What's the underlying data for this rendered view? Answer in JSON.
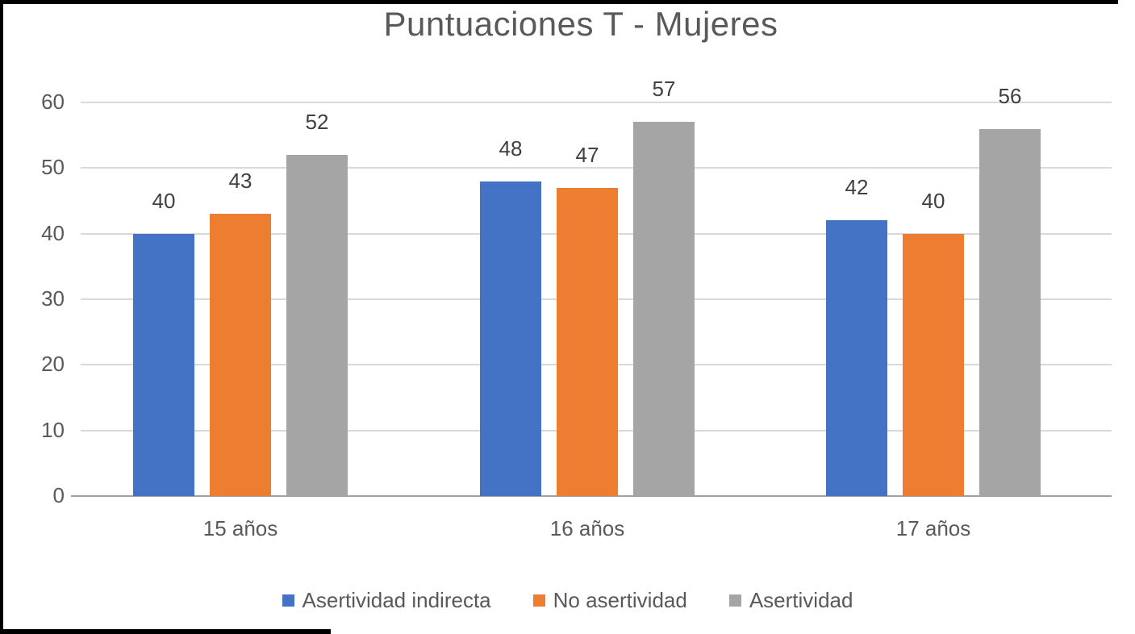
{
  "chart_data": {
    "type": "bar",
    "title": "Puntuaciones T - Mujeres",
    "categories": [
      "15 años",
      "16 años",
      "17 años"
    ],
    "series": [
      {
        "name": "Asertividad indirecta",
        "color": "#4472C4",
        "values": [
          40,
          48,
          42
        ]
      },
      {
        "name": "No asertividad",
        "color": "#ED7D31",
        "values": [
          43,
          47,
          40
        ]
      },
      {
        "name": "Asertividad",
        "color": "#A5A5A5",
        "values": [
          52,
          57,
          56
        ]
      }
    ],
    "xlabel": "",
    "ylabel": "",
    "ylim": [
      0,
      60
    ],
    "yticks": [
      0,
      10,
      20,
      30,
      40,
      50,
      60
    ],
    "grid": true,
    "legend_position": "bottom",
    "data_labels": true
  },
  "style": {
    "background": "#FFFFFF",
    "frame_color": "#000000",
    "title_color": "#595959",
    "axis_text_color": "#595959",
    "data_label_color": "#404040",
    "gridline_color": "#D9D9D9",
    "axis_line_color": "#A0A0A0"
  }
}
